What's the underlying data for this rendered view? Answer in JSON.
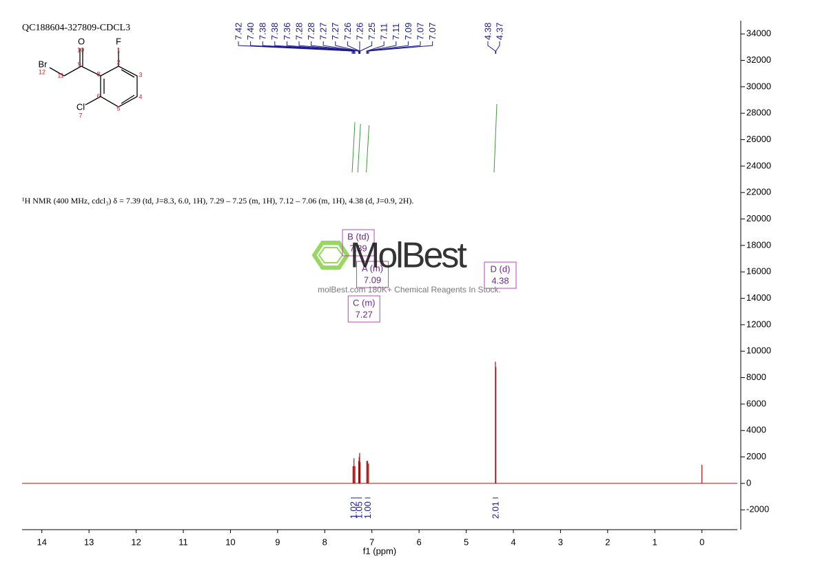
{
  "chart_data": {
    "type": "nmr",
    "title": "QC188604-327809-CDCL3",
    "x_label": "f1 (ppm)",
    "description": "¹H NMR (400 MHz, cdcl₃) δ = 7.39 (td, J=8.3, 6.0, 1H), 7.29 – 7.25 (m, 1H), 7.12 – 7.06 (m, 1H), 4.38 (d, J=0.9, 2H).",
    "xlim": [
      14.42,
      -0.75
    ],
    "xticks": [
      14,
      13,
      12,
      11,
      10,
      9,
      8,
      7,
      6,
      5,
      4,
      3,
      2,
      1,
      0
    ],
    "ylim": [
      -3500,
      35000
    ],
    "yticks": [
      -2000,
      0,
      2000,
      4000,
      6000,
      8000,
      10000,
      12000,
      14000,
      16000,
      18000,
      20000,
      22000,
      24000,
      26000,
      28000,
      30000,
      32000,
      34000
    ],
    "color": "#a01010",
    "peaks": {
      "x": [
        7.4,
        7.38,
        7.36,
        7.28,
        7.27,
        7.26,
        7.25,
        7.11,
        7.09,
        7.07,
        4.38,
        4.37,
        0.0
      ],
      "values": [
        1300,
        1900,
        1300,
        1700,
        2000,
        2300,
        1600,
        1700,
        1700,
        1500,
        9200,
        8800,
        1400
      ]
    },
    "peak_labels": [
      {
        "value": 7.42,
        "label": "7.42"
      },
      {
        "value": 7.4,
        "label": "7.40"
      },
      {
        "value": 7.38,
        "label": "7.38"
      },
      {
        "value": 7.38,
        "label": "7.38"
      },
      {
        "value": 7.36,
        "label": "7.36"
      },
      {
        "value": 7.28,
        "label": "7.28"
      },
      {
        "value": 7.28,
        "label": "7.28"
      },
      {
        "value": 7.27,
        "label": "7.27"
      },
      {
        "value": 7.27,
        "label": "7.27"
      },
      {
        "value": 7.26,
        "label": "7.26"
      },
      {
        "value": 7.26,
        "label": "7.26"
      },
      {
        "value": 7.25,
        "label": "7.25"
      },
      {
        "value": 7.11,
        "label": "7.11"
      },
      {
        "value": 7.11,
        "label": "7.11"
      },
      {
        "value": 7.09,
        "label": "7.09"
      },
      {
        "value": 7.07,
        "label": "7.07"
      },
      {
        "value": 7.07,
        "label": "7.07"
      },
      {
        "value": 4.38,
        "label": "4.38"
      },
      {
        "value": 4.37,
        "label": "4.37"
      }
    ],
    "integrals": {
      "x": [
        7.39,
        7.27,
        7.09,
        4.38
      ],
      "values": [
        1.02,
        1.05,
        1.0,
        2.01
      ],
      "value_labels": [
        "1.02",
        "1.05",
        "1.00",
        "2.01"
      ]
    },
    "multiplets": [
      {
        "name": "B (td)",
        "shift": 7.39
      },
      {
        "name": "A (m)",
        "shift": 7.09
      },
      {
        "name": "C (m)",
        "shift": 7.27
      },
      {
        "name": "D (d)",
        "shift": 4.38
      }
    ],
    "structure": {
      "atoms": [
        {
          "label": "O",
          "number": 10
        },
        {
          "label": "F",
          "number": 1
        },
        {
          "label": "Br",
          "number": 12
        },
        {
          "label": "Cl",
          "number": 7
        }
      ],
      "carbon_numbers": [
        11,
        9,
        8,
        2,
        3,
        6,
        4,
        5
      ]
    },
    "watermark": {
      "logo": "MolBest",
      "text": "molBest.com 180K+ Chemical Reagents In Stock."
    }
  }
}
